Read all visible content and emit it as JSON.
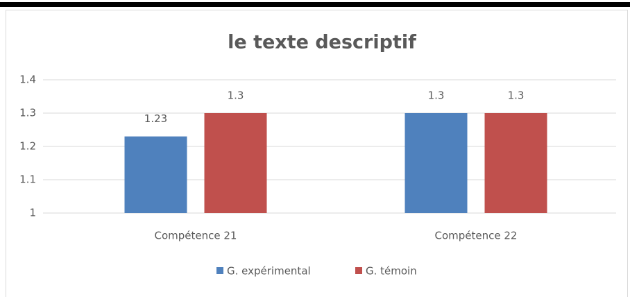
{
  "chart_data": {
    "type": "bar",
    "title": "le texte descriptif",
    "categories": [
      "Compétence 21",
      "Compétence 22"
    ],
    "series": [
      {
        "name": "G. expérimental",
        "color": "#4f81bd",
        "values": [
          1.23,
          1.3
        ]
      },
      {
        "name": "G. témoin",
        "color": "#c0504d",
        "values": [
          1.3,
          1.3
        ]
      }
    ],
    "ylim": [
      1,
      1.4
    ],
    "yticks": [
      1,
      1.1,
      1.2,
      1.3,
      1.4
    ],
    "grid": true,
    "legend": "bottom"
  }
}
